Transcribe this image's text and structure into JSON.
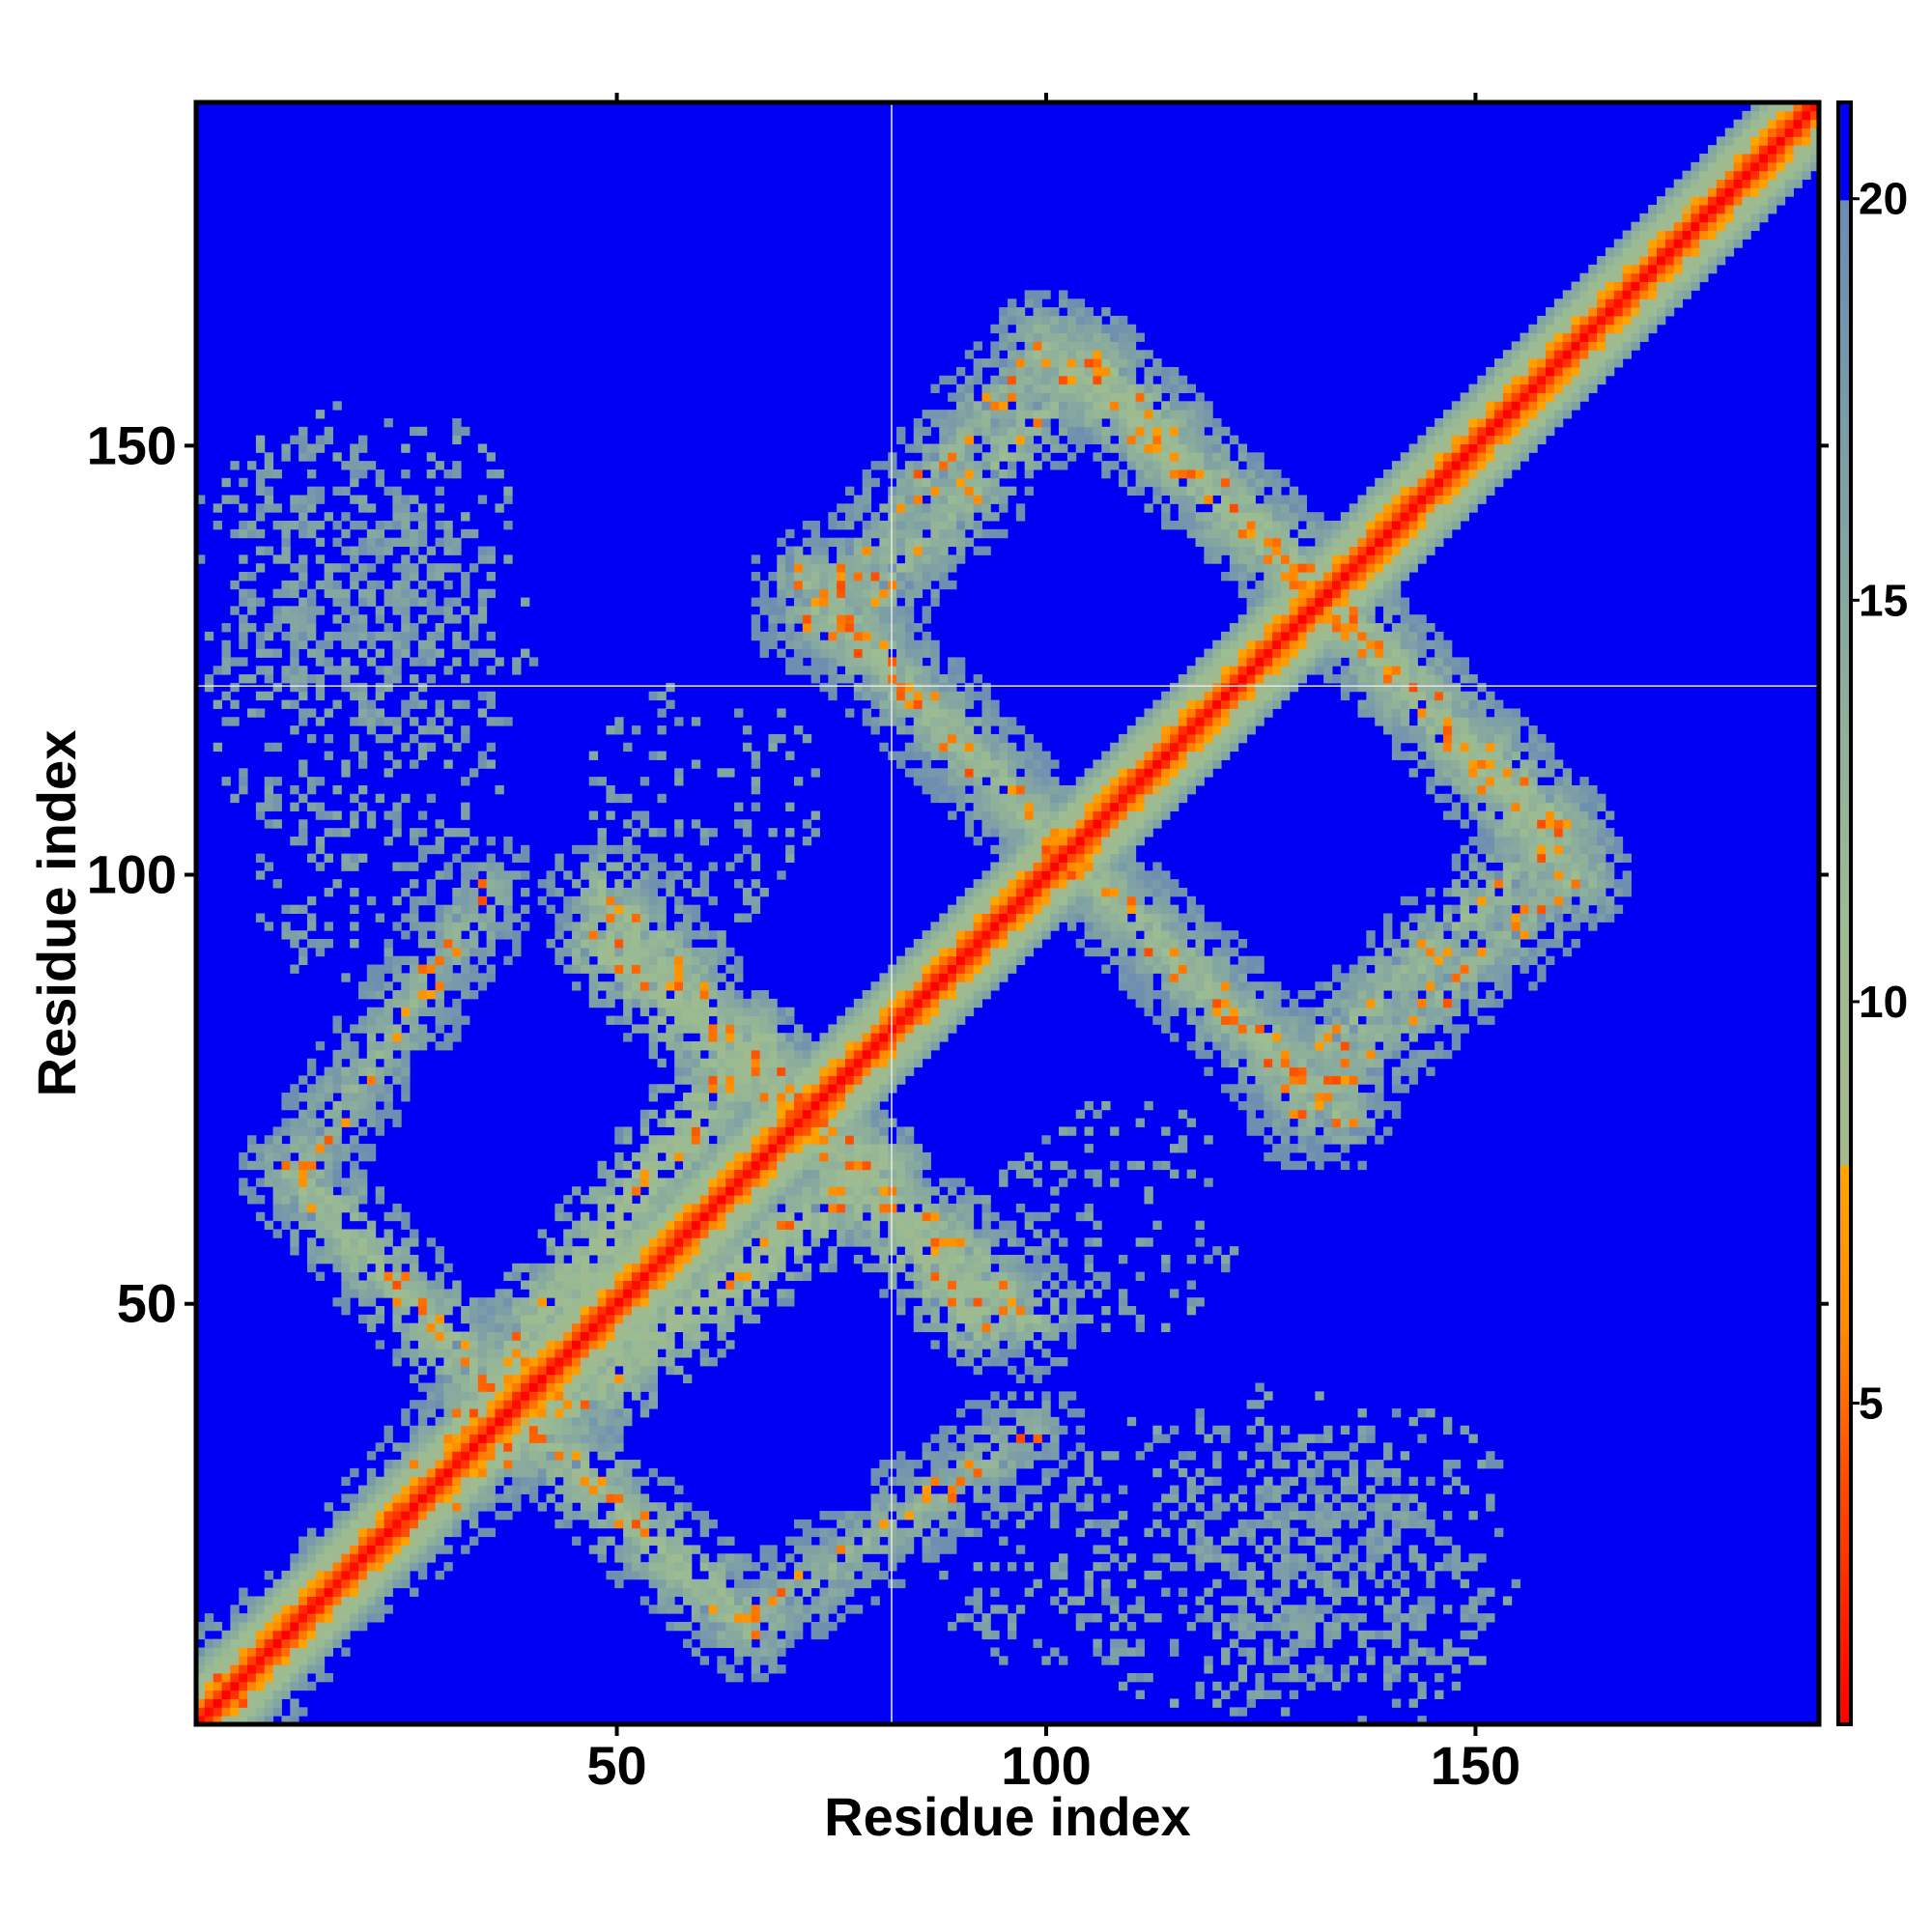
{
  "chart_data": {
    "type": "heatmap",
    "title": "",
    "xlabel": "Residue index",
    "ylabel": "Residue index",
    "n_residues": 190,
    "xlim": [
      1,
      190
    ],
    "ylim": [
      1,
      190
    ],
    "x_ticks": [
      50,
      100,
      150
    ],
    "y_ticks": [
      50,
      100,
      150
    ],
    "colorbar": {
      "min": 1,
      "max": 21.2,
      "ticks": [
        5,
        10,
        15,
        20
      ],
      "tick_labels": [
        "5",
        "10",
        "15",
        "20"
      ],
      "stops": [
        {
          "value": 1.0,
          "color": "#ff0000"
        },
        {
          "value": 4.0,
          "color": "#ff4a00"
        },
        {
          "value": 6.0,
          "color": "#ff8c00"
        },
        {
          "value": 8.0,
          "color": "#ffa500"
        },
        {
          "value": 8.01,
          "color": "#a3b88c"
        },
        {
          "value": 11.0,
          "color": "#9cbc92"
        },
        {
          "value": 15.0,
          "color": "#86a8a0"
        },
        {
          "value": 20.0,
          "color": "#6c8cb2"
        },
        {
          "value": 20.01,
          "color": "#0000f5"
        },
        {
          "value": 21.2,
          "color": "#0000f5"
        }
      ]
    },
    "background_color": "#0000f5",
    "description_values": {
      "diagonal_band_halfwidth": 7,
      "contact_cutoff": 20,
      "guide_lines": {
        "x": 82,
        "y": 122
      }
    },
    "contact_regions": [
      {
        "from": [
          5,
          2
        ],
        "to": [
          38,
          44
        ],
        "center_value": 12
      },
      {
        "from": [
          38,
          44
        ],
        "to": [
          66,
          80
        ],
        "center_value": 10
      },
      {
        "from": [
          40,
          35
        ],
        "to": [
          65,
          12
        ],
        "center_value": 11
      },
      {
        "from": [
          65,
          12
        ],
        "to": [
          98,
          35
        ],
        "center_value": 13
      },
      {
        "from": [
          48,
          92
        ],
        "to": [
          74,
          70
        ],
        "center_value": 10
      },
      {
        "from": [
          74,
          70
        ],
        "to": [
          98,
          48
        ],
        "center_value": 11
      },
      {
        "from": [
          75,
          130
        ],
        "to": [
          105,
          100
        ],
        "center_value": 12
      },
      {
        "from": [
          105,
          100
        ],
        "to": [
          135,
          72
        ],
        "center_value": 12
      },
      {
        "from": [
          72,
          130
        ],
        "to": [
          100,
          162
        ],
        "center_value": 13
      },
      {
        "from": [
          100,
          162
        ],
        "to": [
          130,
          135
        ],
        "center_value": 11
      },
      {
        "from": [
          130,
          135
        ],
        "to": [
          160,
          105
        ],
        "center_value": 11
      },
      {
        "from": [
          133,
          80
        ],
        "to": [
          160,
          105
        ],
        "center_value": 12
      }
    ]
  }
}
